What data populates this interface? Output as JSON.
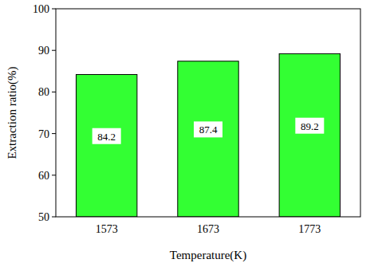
{
  "chart_data": {
    "type": "bar",
    "categories": [
      "1573",
      "1673",
      "1773"
    ],
    "values": [
      84.2,
      87.4,
      89.2
    ],
    "color": "#33ff33",
    "x_label": "Temperature(K)",
    "y_label": "Extraction ratio(%)",
    "ylim": [
      50,
      100
    ],
    "yticks": [
      50,
      60,
      70,
      80,
      90,
      100
    ],
    "data_labels": true,
    "grid": false
  }
}
